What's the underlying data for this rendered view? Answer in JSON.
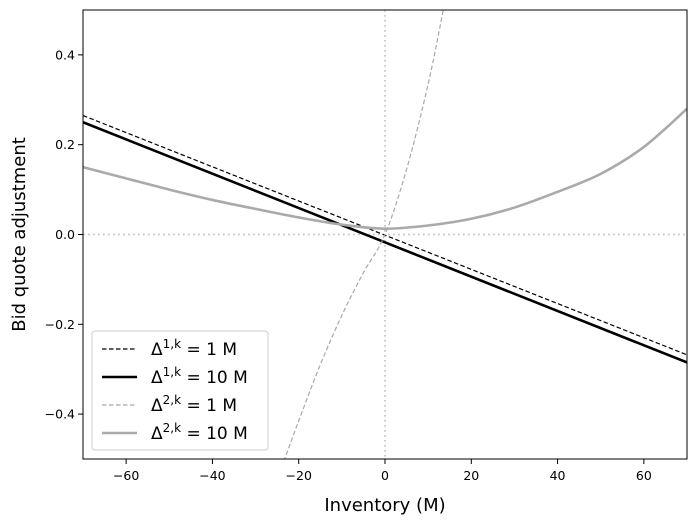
{
  "chart_data": {
    "type": "line",
    "xlabel": "Inventory (M)",
    "ylabel": "Bid quote adjustment",
    "xlim": [
      -70,
      70
    ],
    "ylim": [
      -0.5,
      0.5
    ],
    "x_ticks": [
      -60,
      -40,
      -20,
      0,
      20,
      40,
      60
    ],
    "y_ticks": [
      -0.4,
      -0.2,
      0.0,
      0.2,
      0.4
    ],
    "x_tick_labels": [
      "−60",
      "−40",
      "−20",
      "0",
      "20",
      "40",
      "60"
    ],
    "y_tick_labels": [
      "−0.4",
      "−0.2",
      "0.0",
      "0.2",
      "0.4"
    ],
    "reference_lines": {
      "x": 0,
      "y": 0,
      "style": "dotted",
      "color": "#c8c8c8"
    },
    "legend_position": "lower-left",
    "series": [
      {
        "name": "Δ^{1,k} = 1 M",
        "legend": {
          "symbol": "Δ",
          "sup": "1,k",
          "rest": " = 1 M"
        },
        "color": "#000000",
        "style": "dashed",
        "width": 1.2,
        "x": [
          -70,
          70
        ],
        "y": [
          0.265,
          -0.268
        ]
      },
      {
        "name": "Δ^{1,k} = 10 M",
        "legend": {
          "symbol": "Δ",
          "sup": "1,k",
          "rest": " = 10 M"
        },
        "color": "#000000",
        "style": "solid",
        "width": 2.6,
        "x": [
          -70,
          70
        ],
        "y": [
          0.25,
          -0.285
        ]
      },
      {
        "name": "Δ^{2,k} = 1 M",
        "legend": {
          "symbol": "Δ",
          "sup": "2,k",
          "rest": " = 1 M"
        },
        "color": "#a8a8a8",
        "style": "dashed",
        "width": 1.2,
        "x": [
          -24,
          -20,
          -15,
          -10,
          -5,
          0,
          5,
          10,
          13.5
        ],
        "y": [
          -0.52,
          -0.415,
          -0.29,
          -0.18,
          -0.085,
          0.0,
          0.145,
          0.335,
          0.5
        ]
      },
      {
        "name": "Δ^{2,k} = 10 M",
        "legend": {
          "symbol": "Δ",
          "sup": "2,k",
          "rest": " = 10 M"
        },
        "color": "#aaaaaa",
        "style": "solid",
        "width": 2.6,
        "x": [
          -70,
          -60,
          -50,
          -40,
          -30,
          -20,
          -10,
          0,
          10,
          20,
          30,
          40,
          50,
          60,
          70
        ],
        "y": [
          0.15,
          0.125,
          0.1,
          0.077,
          0.057,
          0.038,
          0.022,
          0.013,
          0.02,
          0.035,
          0.06,
          0.095,
          0.135,
          0.195,
          0.28
        ]
      }
    ]
  }
}
